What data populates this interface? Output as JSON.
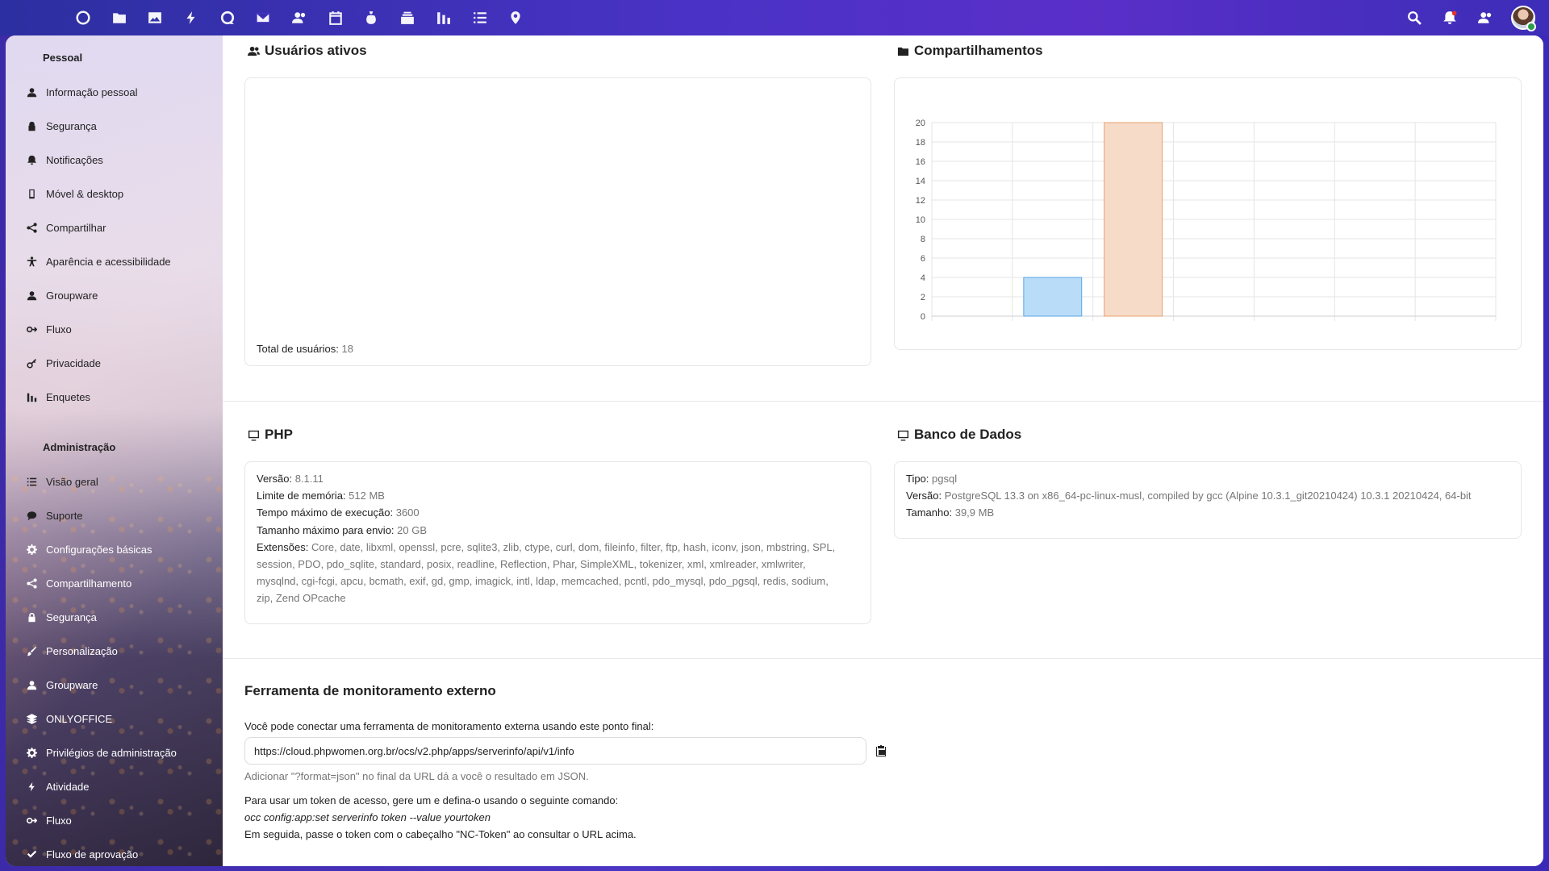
{
  "topbar": {
    "apps": [
      {
        "name": "dashboard-icon"
      },
      {
        "name": "files-icon"
      },
      {
        "name": "photos-icon"
      },
      {
        "name": "activity-icon"
      },
      {
        "name": "talk-icon"
      },
      {
        "name": "mail-icon"
      },
      {
        "name": "contacts-icon"
      },
      {
        "name": "calendar-icon"
      },
      {
        "name": "cospend-icon"
      },
      {
        "name": "deck-icon"
      },
      {
        "name": "polls-icon"
      },
      {
        "name": "tasks-icon"
      },
      {
        "name": "maps-icon"
      }
    ],
    "right": [
      "search-icon",
      "notifications-icon",
      "contacts-menu-icon"
    ]
  },
  "sidebar": {
    "personal_heading": "Pessoal",
    "personal_items": [
      {
        "label": "Informação pessoal",
        "icon": "user-icon"
      },
      {
        "label": "Segurança",
        "icon": "lock-icon"
      },
      {
        "label": "Notificações",
        "icon": "bell-icon"
      },
      {
        "label": "Móvel & desktop",
        "icon": "phone-icon"
      },
      {
        "label": "Compartilhar",
        "icon": "share-icon"
      },
      {
        "label": "Aparência e acessibilidade",
        "icon": "accessibility-icon"
      },
      {
        "label": "Groupware",
        "icon": "groupware-icon"
      },
      {
        "label": "Fluxo",
        "icon": "flow-icon"
      },
      {
        "label": "Privacidade",
        "icon": "key-icon"
      },
      {
        "label": "Enquetes",
        "icon": "polls-icon"
      }
    ],
    "admin_heading": "Administração",
    "admin_items": [
      {
        "label": "Visão geral",
        "icon": "list-icon"
      },
      {
        "label": "Suporte",
        "icon": "chat-icon"
      },
      {
        "label": "Configurações básicas",
        "icon": "gear-icon"
      },
      {
        "label": "Compartilhamento",
        "icon": "share-icon"
      },
      {
        "label": "Segurança",
        "icon": "lock-icon"
      },
      {
        "label": "Personalização",
        "icon": "brush-icon"
      },
      {
        "label": "Groupware",
        "icon": "groupware-icon"
      },
      {
        "label": "ONLYOFFICE",
        "icon": "layers-icon"
      },
      {
        "label": "Privilégios de administração",
        "icon": "gear-icon"
      },
      {
        "label": "Atividade",
        "icon": "activity-icon"
      },
      {
        "label": "Fluxo",
        "icon": "flow-icon"
      },
      {
        "label": "Fluxo de aprovação",
        "icon": "check-icon"
      }
    ]
  },
  "active_users": {
    "title": "Usuários ativos",
    "total_label": "Total de usuários:",
    "total_value": "18"
  },
  "shares": {
    "title": "Compartilhamentos"
  },
  "chart_data": {
    "type": "bar",
    "title": "Compartilhamentos",
    "categories": [
      "",
      "",
      "",
      "",
      "",
      "",
      ""
    ],
    "values": [
      0,
      4,
      20,
      0,
      0,
      0,
      0
    ],
    "ylim": [
      0,
      20
    ],
    "yticks": [
      0,
      2,
      4,
      6,
      8,
      10,
      12,
      14,
      16,
      18,
      20
    ],
    "grid": true,
    "colors": [
      "#b9dcf8",
      "#b9dcf8",
      "#f6dcc8",
      "#b9dcf8",
      "#b9dcf8",
      "#b9dcf8",
      "#b9dcf8"
    ],
    "border_colors": [
      "#5aa6e6",
      "#5aa6e6",
      "#e8a070",
      "#5aa6e6",
      "#5aa6e6",
      "#5aa6e6",
      "#5aa6e6"
    ]
  },
  "php": {
    "title": "PHP",
    "rows": [
      {
        "k": "Versão:",
        "v": "8.1.11"
      },
      {
        "k": "Limite de memória:",
        "v": "512 MB"
      },
      {
        "k": "Tempo máximo de execução:",
        "v": "3600"
      },
      {
        "k": "Tamanho máximo para envio:",
        "v": "20 GB"
      }
    ],
    "ext_label": "Extensões:",
    "ext_lines": [
      "Core, date, libxml, openssl, pcre, sqlite3, zlib, ctype, curl, dom, fileinfo, filter, ftp, hash, iconv, json, mbstring, SPL,",
      "session, PDO, pdo_sqlite, standard, posix, readline, Reflection, Phar, SimpleXML, tokenizer, xml, xmlreader, xmlwriter,",
      "mysqlnd, cgi-fcgi, apcu, bcmath, exif, gd, gmp, imagick, intl, ldap, memcached, pcntl, pdo_mysql, pdo_pgsql, redis, sodium,",
      "zip, Zend OPcache"
    ]
  },
  "database": {
    "title": "Banco de Dados",
    "rows": [
      {
        "k": "Tipo:",
        "v": "pgsql"
      },
      {
        "k": "Versão:",
        "v": "PostgreSQL 13.3 on x86_64-pc-linux-musl, compiled by gcc (Alpine 10.3.1_git20210424) 10.3.1 20210424, 64-bit"
      },
      {
        "k": "Tamanho:",
        "v": "39,9 MB"
      }
    ]
  },
  "monitoring": {
    "title": "Ferramenta de monitoramento externo",
    "intro": "Você pode conectar uma ferramenta de monitoramento externa usando este ponto final:",
    "url": "https://cloud.phpwomen.org.br/ocs/v2.php/apps/serverinfo/api/v1/info",
    "json_hint": "Adicionar \"?format=json\" no final da URL dá a você o resultado em JSON.",
    "token_intro": "Para usar um token de acesso, gere um e defina-o usando o seguinte comando:",
    "token_cmd": "occ config:app:set serverinfo token --value yourtoken",
    "token_outro": "Em seguida, passe o token com o cabeçalho \"NC-Token\" ao consultar o URL acima."
  }
}
